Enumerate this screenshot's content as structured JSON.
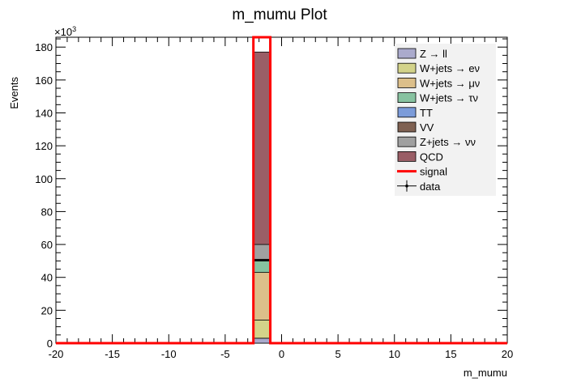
{
  "chart_data": {
    "type": "bar",
    "stacked": true,
    "title": "m_mumu Plot",
    "xlabel": "m_mumu",
    "ylabel": "Events",
    "y_multiplier_label": "×10",
    "y_multiplier_exp": "3",
    "xlim": [
      -20,
      20
    ],
    "ylim": [
      0,
      186
    ],
    "x_ticks": [
      -20,
      -15,
      -10,
      -5,
      0,
      5,
      10,
      15,
      20
    ],
    "y_ticks": [
      0,
      20,
      40,
      60,
      80,
      100,
      120,
      140,
      160,
      180
    ],
    "bin": [
      -2.5,
      -1.0
    ],
    "legend_position": "top-right",
    "series": [
      {
        "name": "Z → ll",
        "color": "#aaaacc",
        "value": 3
      },
      {
        "name": "W+jets → eν",
        "color": "#d3d38a",
        "value": 11
      },
      {
        "name": "W+jets → μν",
        "color": "#dcbf8a",
        "value": 29
      },
      {
        "name": "W+jets → τν",
        "color": "#87c2a0",
        "value": 7
      },
      {
        "name": "TT",
        "color": "#7b9bd9",
        "value": 0.5
      },
      {
        "name": "VV",
        "color": "#7f6152",
        "value": 0.5
      },
      {
        "name": "Z+jets → νν",
        "color": "#a0a0a0",
        "value": 9
      },
      {
        "name": "QCD",
        "color": "#9a5e66",
        "value": 117
      },
      {
        "name": "signal",
        "color": "#ff0000",
        "value": 186,
        "style": "line"
      },
      {
        "name": "data",
        "color": "#000000",
        "value": 0,
        "style": "marker"
      }
    ]
  }
}
